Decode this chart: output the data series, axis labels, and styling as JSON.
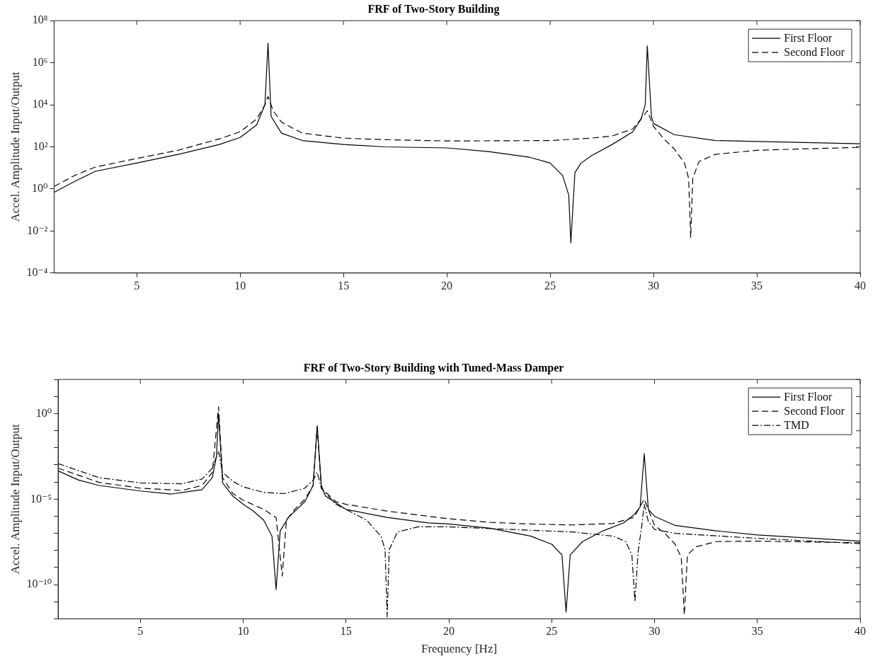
{
  "chart_data": [
    {
      "type": "line",
      "title": "FRF of Two-Story Building",
      "ylabel": "Accel. Amplitude Input/Output",
      "log": "y",
      "grid": false,
      "legend": "top right",
      "marker": "none",
      "xlim": [
        1,
        40
      ],
      "xticks": [
        5,
        10,
        15,
        20,
        25,
        30,
        35,
        40
      ],
      "ylim": [
        0.0001,
        100000000
      ],
      "yticks": [
        {
          "value": 0.0001,
          "label": "10⁻⁴"
        },
        {
          "value": 0.01,
          "label": "10⁻²"
        },
        {
          "value": 1,
          "label": "10⁰"
        },
        {
          "value": 100,
          "label": "10²"
        },
        {
          "value": 10000,
          "label": "10⁴"
        },
        {
          "value": 1000000,
          "label": "10⁶"
        },
        {
          "value": 100000000,
          "label": "10⁸"
        }
      ],
      "series": [
        {
          "name": "First Floor",
          "color": "#000000",
          "line_style": "solid",
          "x": [
            1,
            2,
            3,
            5,
            7,
            9,
            10,
            10.8,
            11.2,
            11.35,
            11.5,
            12,
            13,
            15,
            17,
            20,
            22,
            24,
            25,
            25.6,
            25.9,
            26,
            26.2,
            26.5,
            27,
            28,
            29,
            29.4,
            29.6,
            29.7,
            29.9,
            30,
            31,
            33,
            35,
            40
          ],
          "values": [
            0.69,
            2.3,
            6.9,
            17,
            44,
            130,
            280,
            1100,
            10000,
            8500000,
            2800,
            450,
            200,
            130,
            100,
            89,
            60,
            32,
            17,
            4.4,
            0.51,
            0.0027,
            6,
            17,
            38,
            130,
            520,
            2100,
            10000,
            6300000,
            2800,
            1300,
            380,
            200,
            180,
            140
          ]
        },
        {
          "name": "Second Floor",
          "color": "#000000",
          "line_style": "dashed",
          "x": [
            1,
            2,
            3,
            5,
            7,
            9,
            10,
            10.8,
            11.2,
            11.35,
            11.6,
            12,
            13,
            15,
            17,
            20,
            25,
            27,
            28,
            29,
            29.5,
            29.7,
            30,
            30.5,
            31,
            31.5,
            31.7,
            31.8,
            31.9,
            32.2,
            33,
            35,
            40
          ],
          "values": [
            1.3,
            4.4,
            11,
            28,
            69,
            240,
            520,
            2100,
            10000,
            25000,
            5200,
            1500,
            450,
            260,
            220,
            190,
            200,
            260,
            330,
            710,
            2800,
            5200,
            950,
            240,
            81,
            17,
            3.2,
            0.005,
            3.2,
            20,
            44,
            69,
            95
          ]
        }
      ]
    },
    {
      "type": "line",
      "title": "FRF of Two-Story Building with Tuned-Mass Damper",
      "xlabel": "Frequency [Hz]",
      "ylabel": "Accel. Amplitude Input/Output",
      "log": "y",
      "grid": false,
      "legend": "top right",
      "marker": "none",
      "xlim": [
        1,
        40
      ],
      "xticks": [
        5,
        10,
        15,
        20,
        25,
        30,
        35,
        40
      ],
      "ylim": [
        1e-12,
        100
      ],
      "yticks": [
        {
          "value": 1e-12,
          "label": null
        },
        {
          "value": 1e-11,
          "label": null
        },
        {
          "value": 1e-10,
          "label": "10⁻¹⁰"
        },
        {
          "value": 1e-09,
          "label": null
        },
        {
          "value": 1e-08,
          "label": null
        },
        {
          "value": 1e-07,
          "label": null
        },
        {
          "value": 1e-06,
          "label": null
        },
        {
          "value": 1e-05,
          "label": "10⁻⁵"
        },
        {
          "value": 0.0001,
          "label": null
        },
        {
          "value": 0.001,
          "label": null
        },
        {
          "value": 0.01,
          "label": null
        },
        {
          "value": 0.1,
          "label": null
        },
        {
          "value": 1,
          "label": "10⁰"
        },
        {
          "value": 10,
          "label": null
        },
        {
          "value": 100,
          "label": null
        }
      ],
      "series": [
        {
          "name": "First Floor",
          "color": "#000000",
          "line_style": "solid",
          "x": [
            1,
            2,
            3,
            5,
            6.5,
            8,
            8.5,
            8.7,
            8.8,
            9,
            9.5,
            10,
            10.5,
            11,
            11.4,
            11.6,
            11.8,
            12.2,
            13,
            13.4,
            13.6,
            13.8,
            14,
            15,
            17,
            19,
            20,
            22,
            24,
            25,
            25.5,
            25.7,
            25.9,
            26.5,
            27.5,
            28.5,
            29,
            29.3,
            29.5,
            29.7,
            30,
            31,
            33,
            35,
            40
          ],
          "values": [
            0.00045,
            0.00013,
            6.3e-05,
            3e-05,
            2e-05,
            3.6e-05,
            0.00018,
            0.0032,
            1,
            8.9e-05,
            1.5e-05,
            5e-06,
            2e-06,
            5.9e-07,
            6.8e-08,
            5.2e-11,
            1.4e-07,
            8.5e-07,
            7.2e-06,
            6.3e-05,
            0.2,
            6.3e-05,
            1.5e-05,
            2.5e-06,
            8.5e-07,
            4.1e-07,
            3.5e-07,
            2e-07,
            6.8e-08,
            2.3e-08,
            5.5e-09,
            2.5e-12,
            5.5e-09,
            3.3e-08,
            1.4e-07,
            4.1e-07,
            1.2e-06,
            3.5e-06,
            0.0046,
            2.5e-06,
            1e-06,
            2.9e-07,
            1.4e-07,
            8.1e-08,
            3.5e-08
          ]
        },
        {
          "name": "Second Floor",
          "color": "#000000",
          "line_style": "dashed",
          "x": [
            1,
            3,
            5,
            7,
            8,
            8.5,
            8.8,
            9,
            9.5,
            10,
            11,
            11.6,
            11.9,
            12.1,
            12.5,
            13,
            13.4,
            13.6,
            13.8,
            14.5,
            15,
            17,
            19,
            20,
            22,
            24,
            26,
            28,
            29,
            29.5,
            30,
            30.5,
            31,
            31.3,
            31.45,
            31.6,
            32,
            33,
            35,
            40
          ],
          "values": [
            0.00065,
            9.5e-05,
            4.4e-05,
            3.2e-05,
            6.3e-05,
            0.00037,
            2.5,
            0.00018,
            2.1e-05,
            8.7e-06,
            2.5e-06,
            8.5e-07,
            3.2e-10,
            5.9e-07,
            2.5e-06,
            1e-05,
            6.3e-05,
            0.16,
            4.4e-05,
            7.2e-06,
            5e-06,
            2e-06,
            1e-06,
            7.1e-07,
            4.4e-07,
            3.5e-07,
            3.1e-07,
            3.8e-07,
            8.5e-07,
            1e-05,
            2.9e-07,
            1e-07,
            2.3e-08,
            3.9e-09,
            1.7e-12,
            5.5e-09,
            1.6e-08,
            3.3e-08,
            3.5e-08,
            2.8e-08
          ]
        },
        {
          "name": "TMD",
          "color": "#000000",
          "line_style": "dashdot",
          "x": [
            1,
            3,
            5,
            7,
            8,
            8.5,
            8.8,
            9,
            9.5,
            10,
            11,
            12,
            13,
            13.4,
            13.6,
            13.8,
            14.5,
            15,
            16,
            16.7,
            16.9,
            17,
            17.1,
            17.5,
            18.5,
            20,
            23,
            26,
            28,
            28.6,
            28.9,
            29.05,
            29.2,
            29.4,
            29.5,
            29.7,
            30,
            31,
            35,
            40
          ],
          "values": [
            0.0012,
            0.00018,
            8.9e-05,
            7.9e-05,
            0.00015,
            0.00065,
            0.0066,
            0.00037,
            0.00011,
            5.2e-05,
            2.5e-05,
            2.1e-05,
            4.4e-05,
            0.00013,
            0.00037,
            4.4e-05,
            5e-06,
            2.5e-06,
            5.9e-07,
            6.8e-08,
            1.1e-08,
            1.3e-12,
            1.1e-08,
            1.2e-07,
            2.4e-07,
            2.4e-07,
            1.7e-07,
            1.2e-07,
            6.8e-08,
            3.3e-08,
            5.5e-09,
            1e-11,
            7.9e-09,
            4.1e-07,
            5e-06,
            4.9e-07,
            1.7e-07,
            1e-07,
            5.1e-08,
            2.5e-08
          ]
        }
      ]
    }
  ]
}
